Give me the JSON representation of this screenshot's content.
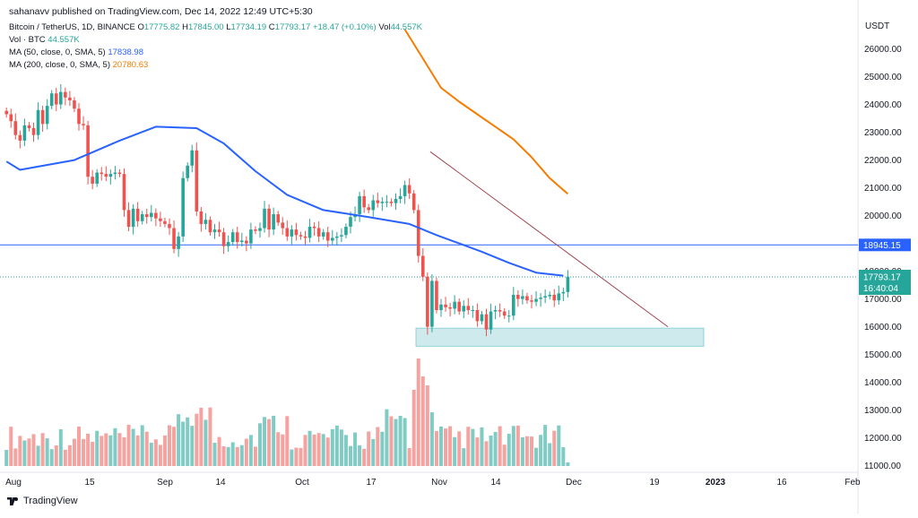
{
  "header": {
    "publish_line": "sahanavv published on TradingView.com, Dec 14, 2022 12:49 UTC+5:30",
    "symbol": "Bitcoin / TetherUS, 1D, BINANCE",
    "o_label": "O",
    "o_value": "17775.82",
    "h_label": "H",
    "h_value": "17845.00",
    "l_label": "L",
    "l_value": "17734.19",
    "c_label": "C",
    "c_value": "17793.17",
    "change": "+18.47 (+0.10%)",
    "vol_label": "Vol",
    "vol_value": "44.557K",
    "vol_indicator_label": "Vol · BTC",
    "vol_indicator_value": "44.557K",
    "ma50_label": "MA (50, close, 0, SMA, 5)",
    "ma50_value": "17838.98",
    "ma200_label": "MA (200, close, 0, SMA, 5)",
    "ma200_value": "20780.63"
  },
  "footer": {
    "brand": "TradingView"
  },
  "colors": {
    "up": "#26a69a",
    "down": "#ef5350",
    "up_vol": "#80cbc4",
    "down_vol": "#f4a3a0",
    "ma50": "#2962ff",
    "ma200": "#f57c00",
    "hline": "#2962ff",
    "trendline": "#a0434e",
    "support_zone": "#a5d8df"
  },
  "chart_data": {
    "type": "candlestick",
    "title": "Bitcoin / TetherUS, 1D, BINANCE",
    "y_axis_title": "USDT",
    "y_ticks": [
      11000,
      12000,
      13000,
      14000,
      15000,
      16000,
      17000,
      18000,
      19000,
      20000,
      21000,
      22000,
      23000,
      24000,
      25000,
      26000
    ],
    "x_ticks": [
      "Aug",
      "15",
      "Sep",
      "14",
      "Oct",
      "17",
      "Nov",
      "14",
      "Dec",
      "19",
      "2023",
      "16",
      "Feb"
    ],
    "price_ylim": [
      11000,
      26500
    ],
    "horizontal_line": 18945.15,
    "horizontal_line_label": "18945.15",
    "last_price_label": "17793.17",
    "countdown_label": "16:40:04",
    "candles_note": "approximate daily closes, Aug 1 – Dec 14 2022",
    "closes": [
      23650,
      23400,
      22900,
      22700,
      23250,
      23150,
      22900,
      23800,
      23300,
      23950,
      24400,
      24000,
      24450,
      24250,
      24150,
      23850,
      23300,
      23250,
      21400,
      21150,
      21550,
      21500,
      21400,
      21500,
      21550,
      21500,
      20200,
      19600,
      20250,
      19800,
      20050,
      19950,
      20100,
      19900,
      19800,
      19700,
      19550,
      18800,
      19250,
      21350,
      21800,
      22350,
      20150,
      19700,
      19850,
      19400,
      19500,
      19400,
      18900,
      19050,
      19400,
      19050,
      19100,
      19000,
      19500,
      19450,
      19550,
      20250,
      19500,
      20050,
      19750,
      19550,
      19250,
      19500,
      19300,
      19250,
      19200,
      19600,
      19550,
      19250,
      19400,
      19100,
      19200,
      19250,
      19300,
      19600,
      19950,
      20050,
      20700,
      20300,
      20200,
      20550,
      20450,
      20500,
      20500,
      20450,
      20600,
      20700,
      21100,
      20800,
      20200,
      18550,
      17800,
      16000,
      17650,
      16600,
      16800,
      16700,
      16650,
      16900,
      16550,
      16750,
      16600,
      16600,
      16200,
      16450,
      15900,
      16550,
      16600,
      16550,
      16400,
      16400,
      17150,
      17000,
      17100,
      16950,
      16900,
      17000,
      17050,
      17100,
      17150,
      16950,
      17200,
      17250,
      17800
    ],
    "ma50_anchor": [
      [
        0,
        21950
      ],
      [
        3,
        21650
      ],
      [
        15,
        22000
      ],
      [
        25,
        22700
      ],
      [
        33,
        23200
      ],
      [
        42,
        23150
      ],
      [
        48,
        22600
      ],
      [
        55,
        21600
      ],
      [
        62,
        20750
      ],
      [
        70,
        20200
      ],
      [
        80,
        19950
      ],
      [
        89,
        19700
      ],
      [
        95,
        19300
      ],
      [
        100,
        19000
      ],
      [
        105,
        18700
      ],
      [
        111,
        18300
      ],
      [
        117,
        17950
      ],
      [
        123,
        17839
      ]
    ],
    "ma200_anchor": [
      [
        88,
        26700
      ],
      [
        96,
        24600
      ],
      [
        100,
        24100
      ],
      [
        104,
        23650
      ],
      [
        108,
        23200
      ],
      [
        112,
        22750
      ],
      [
        116,
        22100
      ],
      [
        120,
        21350
      ],
      [
        124,
        20781
      ]
    ],
    "trendline": {
      "start": {
        "date": "Nov 1",
        "price": 22300
      },
      "end": {
        "date": "Dec 21",
        "price": 16000
      }
    },
    "support_zone": {
      "start": "Nov 7",
      "end": "Dec 22",
      "low": 15300,
      "high": 15950
    },
    "volume_note": "relative daily volume bars (BTC)"
  }
}
